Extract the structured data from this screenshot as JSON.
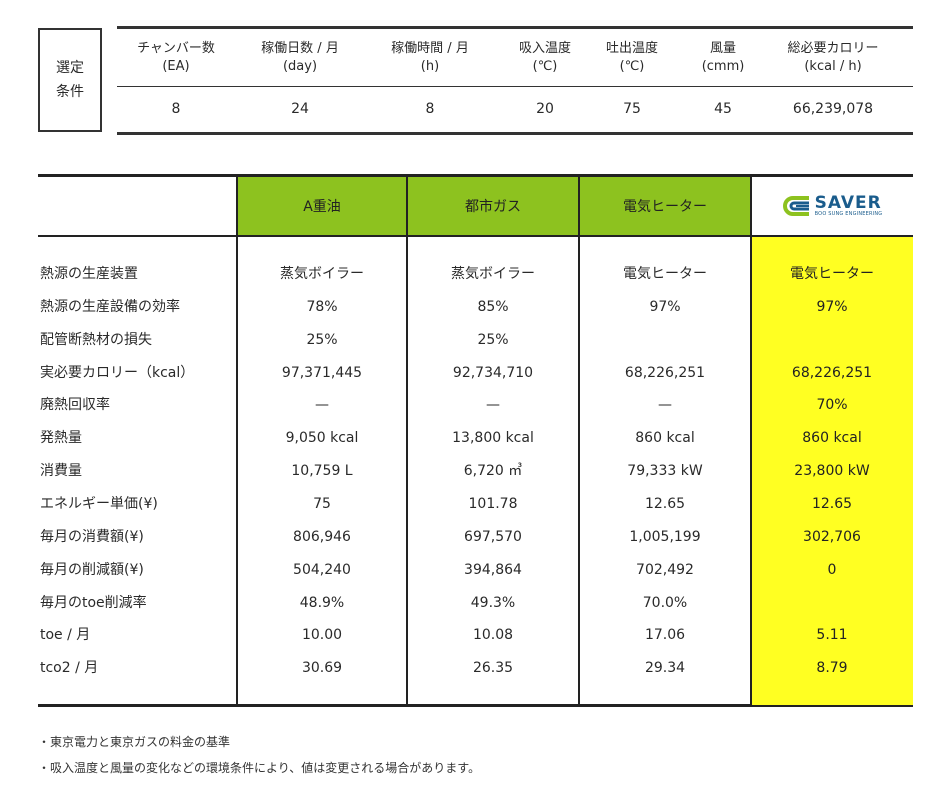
{
  "conditions": {
    "label_line1": "選定",
    "label_line2": "条件",
    "headers": [
      {
        "name": "チャンバー数",
        "unit": "(EA)"
      },
      {
        "name": "稼働日数 / 月",
        "unit": "(day)"
      },
      {
        "name": "稼働時間 / 月",
        "unit": "(h)"
      },
      {
        "name": "吸入温度",
        "unit": "(℃)"
      },
      {
        "name": "吐出温度",
        "unit": "(℃)"
      },
      {
        "name": "風量",
        "unit": "(cmm)"
      },
      {
        "name": "総必要カロリー",
        "unit": "(kcal / h)"
      }
    ],
    "values": [
      "8",
      "24",
      "8",
      "20",
      "75",
      "45",
      "66,239,078"
    ]
  },
  "comparison": {
    "columns": [
      "A重油",
      "都市ガス",
      "電気ヒーター"
    ],
    "logo": {
      "text": "SAVER",
      "subtext": "BOO SUNG ENGINEERING",
      "color": "#1a5c8c"
    },
    "rows": [
      {
        "label": "熱源の生産装置",
        "values": [
          "蒸気ボイラー",
          "蒸気ボイラー",
          "電気ヒーター",
          "電気ヒーター"
        ]
      },
      {
        "label": "熱源の生産設備の効率",
        "values": [
          "78%",
          "85%",
          "97%",
          "97%"
        ]
      },
      {
        "label": "配管断熱材の損失",
        "values": [
          "25%",
          "25%",
          "",
          ""
        ]
      },
      {
        "label": "実必要カロリー（kcal）",
        "values": [
          "97,371,445",
          "92,734,710",
          "68,226,251",
          "68,226,251"
        ]
      },
      {
        "label": "廃熱回収率",
        "values": [
          "—",
          "—",
          "—",
          "70%"
        ]
      },
      {
        "label": "発熱量",
        "values": [
          "9,050 kcal",
          "13,800 kcal",
          "860 kcal",
          "860 kcal"
        ]
      },
      {
        "label": "消費量",
        "values": [
          "10,759 L",
          "6,720 ㎥",
          "79,333  kW",
          "23,800  kW"
        ]
      },
      {
        "label": "エネルギー単価(¥)",
        "values": [
          "75",
          "101.78",
          "12.65",
          "12.65"
        ]
      },
      {
        "label": "毎月の消費額(¥)",
        "values": [
          "806,946",
          "697,570",
          "1,005,199",
          "302,706"
        ]
      },
      {
        "label": "毎月の削減額(¥)",
        "values": [
          "504,240",
          "394,864",
          "702,492",
          "0"
        ]
      },
      {
        "label": "毎月のtoe削減率",
        "values": [
          "48.9%",
          "49.3%",
          "70.0%",
          ""
        ]
      },
      {
        "label": "toe / 月",
        "values": [
          "10.00",
          "10.08",
          "17.06",
          "5.11"
        ]
      },
      {
        "label": "tco2 / 月",
        "values": [
          "30.69",
          "26.35",
          "29.34",
          "8.79"
        ]
      }
    ],
    "colors": {
      "green": "#8dc21f",
      "yellow": "#ffff22"
    }
  },
  "footnotes": [
    "・東京電力と東京ガスの料金の基準",
    "・吸入温度と風量の変化などの環境条件により、値は変更される場合があります。"
  ]
}
